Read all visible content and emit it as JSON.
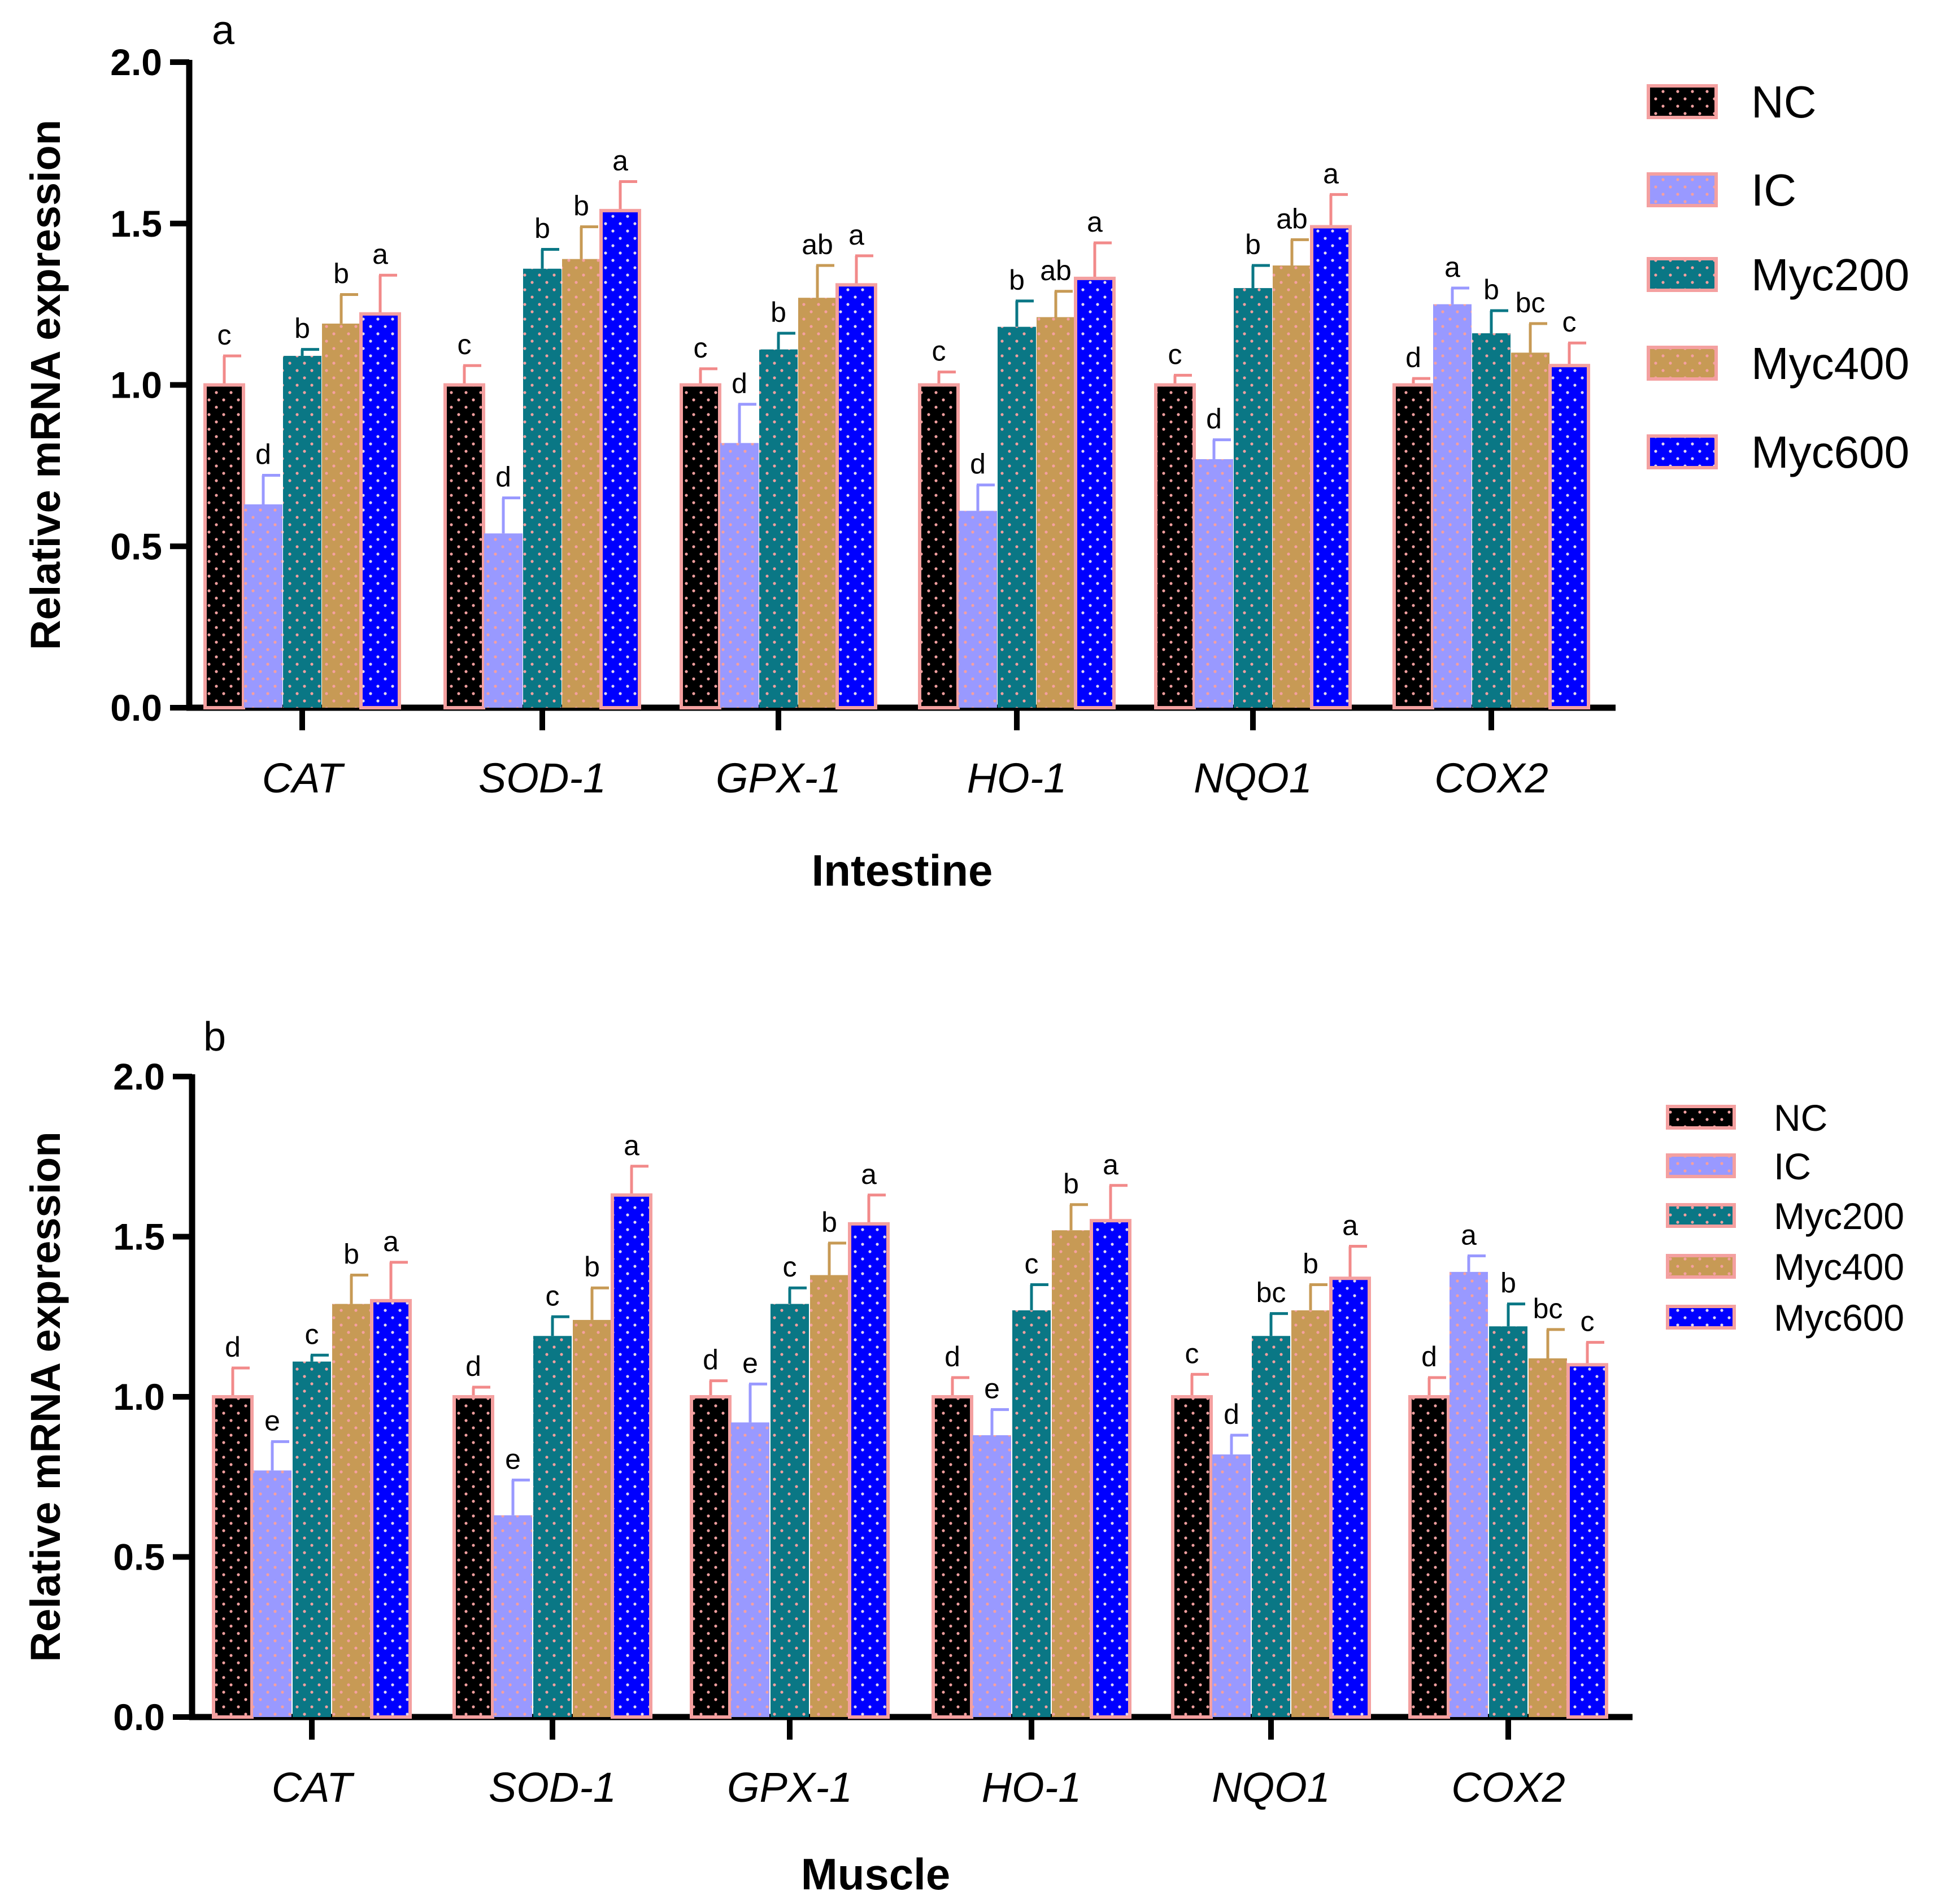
{
  "chart_data": [
    {
      "type": "bar",
      "panel": "a",
      "title": "",
      "xlabel": "Intestine",
      "ylabel": "Relative mRNA expression",
      "ylim": [
        0,
        2.0
      ],
      "yticks": [
        "0.0",
        "0.5",
        "1.0",
        "1.5",
        "2.0"
      ],
      "categories": [
        "CAT",
        "SOD-1",
        "GPX-1",
        "HO-1",
        "NQO1",
        "COX2"
      ],
      "legend_position": "top-right",
      "series": [
        {
          "name": "NC",
          "color": "#000000",
          "values": [
            1.0,
            1.0,
            1.0,
            1.0,
            1.0,
            1.0
          ],
          "errors": [
            0.09,
            0.06,
            0.05,
            0.04,
            0.03,
            0.02
          ],
          "letters": [
            "c",
            "c",
            "c",
            "c",
            "c",
            "d"
          ]
        },
        {
          "name": "IC",
          "color": "#9999ff",
          "values": [
            0.63,
            0.54,
            0.82,
            0.61,
            0.77,
            1.25
          ],
          "errors": [
            0.09,
            0.11,
            0.12,
            0.08,
            0.06,
            0.05
          ],
          "letters": [
            "d",
            "d",
            "d",
            "d",
            "d",
            "a"
          ]
        },
        {
          "name": "Myc200",
          "color": "#0a7785",
          "values": [
            1.09,
            1.36,
            1.11,
            1.18,
            1.3,
            1.16
          ],
          "errors": [
            0.02,
            0.06,
            0.05,
            0.08,
            0.07,
            0.07
          ],
          "letters": [
            "b",
            "b",
            "b",
            "b",
            "b",
            "b"
          ]
        },
        {
          "name": "Myc400",
          "color": "#c79a55",
          "values": [
            1.19,
            1.39,
            1.27,
            1.21,
            1.37,
            1.1
          ],
          "errors": [
            0.09,
            0.1,
            0.1,
            0.08,
            0.08,
            0.09
          ],
          "letters": [
            "b",
            "b",
            "ab",
            "ab",
            "ab",
            "bc"
          ]
        },
        {
          "name": "Myc600",
          "color": "#0000ff",
          "values": [
            1.22,
            1.54,
            1.31,
            1.33,
            1.49,
            1.06
          ],
          "errors": [
            0.12,
            0.09,
            0.09,
            0.11,
            0.1,
            0.07
          ],
          "letters": [
            "a",
            "a",
            "a",
            "a",
            "a",
            "c"
          ]
        }
      ]
    },
    {
      "type": "bar",
      "panel": "b",
      "title": "",
      "xlabel": "Muscle",
      "ylabel": "Relative mRNA expression",
      "ylim": [
        0,
        2.0
      ],
      "yticks": [
        "0.0",
        "0.5",
        "1.0",
        "1.5",
        "2.0"
      ],
      "categories": [
        "CAT",
        "SOD-1",
        "GPX-1",
        "HO-1",
        "NQO1",
        "COX2"
      ],
      "legend_position": "top-right",
      "series": [
        {
          "name": "NC",
          "color": "#000000",
          "values": [
            1.0,
            1.0,
            1.0,
            1.0,
            1.0,
            1.0
          ],
          "errors": [
            0.09,
            0.03,
            0.05,
            0.06,
            0.07,
            0.06
          ],
          "letters": [
            "d",
            "d",
            "d",
            "d",
            "c",
            "d"
          ]
        },
        {
          "name": "IC",
          "color": "#9999ff",
          "values": [
            0.77,
            0.63,
            0.92,
            0.88,
            0.82,
            1.39
          ],
          "errors": [
            0.09,
            0.11,
            0.12,
            0.08,
            0.06,
            0.05
          ],
          "letters": [
            "e",
            "e",
            "e",
            "e",
            "d",
            "a"
          ]
        },
        {
          "name": "Myc200",
          "color": "#0a7785",
          "values": [
            1.11,
            1.19,
            1.29,
            1.27,
            1.19,
            1.22
          ],
          "errors": [
            0.02,
            0.06,
            0.05,
            0.08,
            0.07,
            0.07
          ],
          "letters": [
            "c",
            "c",
            "c",
            "c",
            "bc",
            "b"
          ]
        },
        {
          "name": "Myc400",
          "color": "#c79a55",
          "values": [
            1.29,
            1.24,
            1.38,
            1.52,
            1.27,
            1.12
          ],
          "errors": [
            0.09,
            0.1,
            0.1,
            0.08,
            0.08,
            0.09
          ],
          "letters": [
            "b",
            "b",
            "b",
            "b",
            "b",
            "bc"
          ]
        },
        {
          "name": "Myc600",
          "color": "#0000ff",
          "values": [
            1.3,
            1.63,
            1.54,
            1.55,
            1.37,
            1.1
          ],
          "errors": [
            0.12,
            0.09,
            0.09,
            0.11,
            0.1,
            0.07
          ],
          "letters": [
            "a",
            "a",
            "a",
            "a",
            "a",
            "c"
          ]
        }
      ]
    }
  ]
}
